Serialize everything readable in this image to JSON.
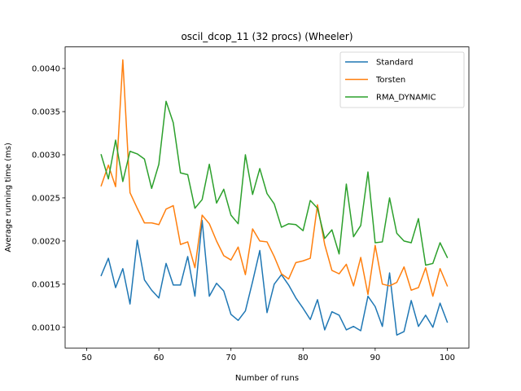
{
  "chart_data": {
    "type": "line",
    "title": "oscil_dcop_11 (32 procs) (Wheeler)",
    "xlabel": "Number of runs",
    "ylabel": "Average running time (ms)",
    "xlim": [
      47,
      103
    ],
    "ylim": [
      0.00076,
      0.00425
    ],
    "xticks": [
      50,
      60,
      70,
      80,
      90,
      100
    ],
    "xtick_labels": [
      "50",
      "60",
      "70",
      "80",
      "90",
      "100"
    ],
    "yticks": [
      0.001,
      0.0015,
      0.002,
      0.0025,
      0.003,
      0.0035,
      0.004
    ],
    "ytick_labels": [
      "0.0010",
      "0.0015",
      "0.0020",
      "0.0025",
      "0.0030",
      "0.0035",
      "0.0040"
    ],
    "grid": false,
    "legend_position": "top-right",
    "x": [
      52,
      53,
      54,
      55,
      56,
      57,
      58,
      59,
      60,
      61,
      62,
      63,
      64,
      65,
      66,
      67,
      68,
      69,
      70,
      71,
      72,
      73,
      74,
      75,
      76,
      77,
      78,
      79,
      80,
      81,
      82,
      83,
      84,
      85,
      86,
      87,
      88,
      89,
      90,
      91,
      92,
      93,
      94,
      95,
      96,
      97,
      98,
      99,
      100
    ],
    "series": [
      {
        "name": "Standard",
        "color": "#1f77b4",
        "values": [
          0.0016,
          0.0018,
          0.00146,
          0.00168,
          0.00127,
          0.00201,
          0.00155,
          0.00143,
          0.00134,
          0.00174,
          0.00149,
          0.00149,
          0.00182,
          0.00136,
          0.00224,
          0.00136,
          0.00151,
          0.00142,
          0.00115,
          0.00108,
          0.00119,
          0.00153,
          0.00189,
          0.00117,
          0.0015,
          0.00161,
          0.00149,
          0.00134,
          0.00122,
          0.00109,
          0.00132,
          0.00097,
          0.00118,
          0.00114,
          0.00097,
          0.00101,
          0.00096,
          0.00136,
          0.00124,
          0.00101,
          0.00163,
          0.00091,
          0.00095,
          0.00131,
          0.00101,
          0.00114,
          0.001,
          0.00128,
          0.00106
        ]
      },
      {
        "name": "Torsten",
        "color": "#ff7f0e",
        "values": [
          0.00264,
          0.00288,
          0.00263,
          0.0041,
          0.00256,
          0.00238,
          0.00221,
          0.00221,
          0.00219,
          0.00237,
          0.00241,
          0.00196,
          0.00199,
          0.00169,
          0.0023,
          0.0022,
          0.002,
          0.00183,
          0.00178,
          0.00193,
          0.00161,
          0.00214,
          0.002,
          0.00199,
          0.00182,
          0.00162,
          0.00156,
          0.00175,
          0.00177,
          0.0018,
          0.00242,
          0.00196,
          0.00166,
          0.00162,
          0.00173,
          0.00148,
          0.00181,
          0.00138,
          0.00195,
          0.0015,
          0.00148,
          0.00152,
          0.0017,
          0.00143,
          0.00146,
          0.00169,
          0.00136,
          0.00168,
          0.00148
        ]
      },
      {
        "name": "RMA_DYNAMIC",
        "color": "#2ca02c",
        "values": [
          0.003,
          0.00272,
          0.00317,
          0.00269,
          0.00304,
          0.00301,
          0.00295,
          0.00261,
          0.00289,
          0.00362,
          0.00337,
          0.00279,
          0.00277,
          0.00238,
          0.00248,
          0.00289,
          0.00244,
          0.0026,
          0.0023,
          0.0022,
          0.003,
          0.00254,
          0.00284,
          0.00255,
          0.00243,
          0.00216,
          0.0022,
          0.00219,
          0.00212,
          0.00247,
          0.00238,
          0.00203,
          0.00213,
          0.00185,
          0.00266,
          0.00205,
          0.00218,
          0.0028,
          0.00198,
          0.00199,
          0.0025,
          0.00209,
          0.002,
          0.00198,
          0.00226,
          0.00172,
          0.00174,
          0.00198,
          0.00181
        ]
      }
    ]
  }
}
